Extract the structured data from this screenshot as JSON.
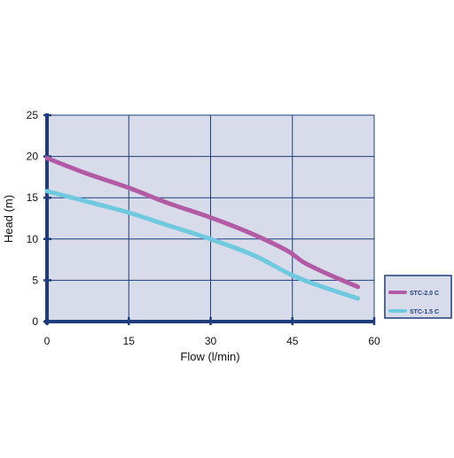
{
  "chart_data": {
    "type": "line",
    "xlabel": "Flow (l/min)",
    "ylabel": "Head (m)",
    "xlim": [
      0,
      60
    ],
    "ylim": [
      0,
      25
    ],
    "xticks": [
      "0",
      "15",
      "30",
      "45",
      "60"
    ],
    "yticks": [
      "0",
      "5",
      "10",
      "15",
      "20",
      "25"
    ],
    "grid": true,
    "legend_position": "right",
    "series": [
      {
        "name": "STC-2.0 C",
        "color": "#b35aa5",
        "x": [
          0,
          7,
          15,
          22,
          30,
          37,
          44,
          47,
          51,
          57
        ],
        "y": [
          19.8,
          18.0,
          16.2,
          14.4,
          12.6,
          10.8,
          8.6,
          7.2,
          5.9,
          4.2
        ]
      },
      {
        "name": "STC-1.5 C",
        "color": "#6fc9df",
        "x": [
          0,
          7,
          15,
          22,
          30,
          38,
          45,
          51,
          57
        ],
        "y": [
          15.8,
          14.6,
          13.2,
          11.7,
          10.0,
          8.0,
          5.6,
          4.1,
          2.8
        ]
      }
    ]
  }
}
